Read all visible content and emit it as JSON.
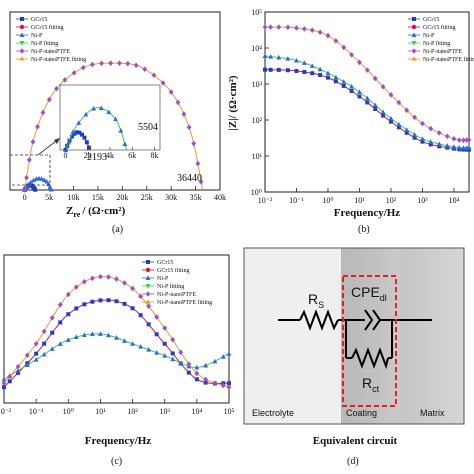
{
  "colors": {
    "GCr15": "#1f3fbf",
    "GCr15 fitting": "#e0123a",
    "Ni-P": "#2f66e8",
    "Ni-P fitting": "#37d04a",
    "Ni-P-nanoPTFE": "#a24fc7",
    "Ni-P-nanoPTFE fitting": "#e0a030"
  },
  "legend_names": [
    "GCr15",
    "GCr15 fitting",
    "Ni-P",
    "Ni-P fitting",
    "Ni-P-nanoPTFE",
    "Ni-P-nanoPTFE fitting"
  ],
  "legend_names_b": [
    "GCr15",
    "GCr15 fitting",
    "Ni-P",
    "Ni-P fitting",
    "Ni-P-nanoPTFE",
    "Ni-P-nanoPTFE fitting"
  ],
  "chart_data": [
    {
      "type": "scatter",
      "panel_label": "(a)",
      "xlabel_main": "Z",
      "xlabel_sub": "re",
      "xlabel_rest": "/ (Ω·cm²)",
      "xlim": [
        -3000,
        40000
      ],
      "ylim": [
        0,
        40000
      ],
      "x_ticks": [
        "0",
        "5k",
        "10k",
        "15k",
        "20k",
        "25k",
        "30k",
        "35k",
        "40k"
      ],
      "x_tick_values": [
        0,
        5000,
        10000,
        15000,
        20000,
        25000,
        30000,
        35000,
        40000
      ],
      "annotations": [
        "36440",
        "5504",
        "2193"
      ],
      "inset": {
        "x_ticks": [
          "0",
          "2k",
          "4k",
          "6k",
          "8k"
        ],
        "x_tick_values": [
          0,
          2000,
          4000,
          6000,
          8000
        ],
        "xlim": [
          -500,
          8500
        ],
        "ylim": [
          0,
          4000
        ]
      },
      "series": [
        {
          "name": "GCr15",
          "points": [
            [
              0,
              0
            ],
            [
              500,
              760
            ],
            [
              1097,
              1097
            ],
            [
              1700,
              760
            ],
            [
              2193,
              0
            ]
          ]
        },
        {
          "name": "Ni-P",
          "points": [
            [
              0,
              0
            ],
            [
              1000,
              1500
            ],
            [
              2752,
              2600
            ],
            [
              4500,
              1900
            ],
            [
              5504,
              0
            ]
          ]
        },
        {
          "name": "Ni-P-nanoPTFE",
          "points": [
            [
              0,
              0
            ],
            [
              2000,
              12000
            ],
            [
              6000,
              22000
            ],
            [
              12000,
              27500
            ],
            [
              18220,
              28500
            ],
            [
              24000,
              27500
            ],
            [
              30000,
              22000
            ],
            [
              34000,
              13000
            ],
            [
              36440,
              0
            ]
          ]
        }
      ]
    },
    {
      "type": "line",
      "panel_label": "(b)",
      "ylabel": "|Z|/ (Ω·cm²)",
      "xlabel": "Frequency/Hz",
      "xlog": true,
      "ylog": true,
      "xlim": [
        0.01,
        30000
      ],
      "ylim": [
        1,
        100000
      ],
      "x_ticks": [
        "10⁻²",
        "10⁻¹",
        "10⁰",
        "10¹",
        "10²",
        "10³",
        "10⁴"
      ],
      "y_ticks": [
        "10⁰",
        "10¹",
        "10²",
        "10³",
        "10⁴",
        "10⁵"
      ],
      "series": [
        {
          "name": "GCr15",
          "x": [
            0.01,
            0.1,
            1,
            10,
            100,
            1000,
            10000,
            30000
          ],
          "y": [
            2500,
            2300,
            1500,
            450,
            90,
            25,
            16,
            15
          ]
        },
        {
          "name": "Ni-P",
          "x": [
            0.01,
            0.1,
            1,
            10,
            100,
            1000,
            10000,
            30000
          ],
          "y": [
            6000,
            4500,
            2000,
            600,
            110,
            30,
            18,
            17
          ]
        },
        {
          "name": "Ni-P-nanoPTFE",
          "x": [
            0.01,
            0.1,
            1,
            10,
            100,
            1000,
            10000,
            30000
          ],
          "y": [
            38000,
            36000,
            22000,
            4000,
            500,
            80,
            30,
            28
          ]
        }
      ]
    },
    {
      "type": "line",
      "panel_label": "(c)",
      "xlabel": "Frequency/Hz",
      "xlog": true,
      "xlim": [
        0.01,
        100000
      ],
      "ylim": [
        0,
        75
      ],
      "x_ticks": [
        "10⁻²",
        "10⁻¹",
        "10⁰",
        "10¹",
        "10²",
        "10³",
        "10⁴",
        "10⁵"
      ],
      "series": [
        {
          "name": "GCr15",
          "x": [
            0.01,
            0.1,
            1,
            10,
            100,
            1000,
            10000,
            100000
          ],
          "y": [
            8,
            25,
            45,
            52,
            48,
            30,
            12,
            10
          ]
        },
        {
          "name": "Ni-P",
          "x": [
            0.01,
            0.1,
            1,
            10,
            100,
            1000,
            10000,
            100000
          ],
          "y": [
            12,
            22,
            32,
            35,
            30,
            24,
            18,
            25
          ]
        },
        {
          "name": "Ni-P-nanoPTFE",
          "x": [
            0.01,
            0.1,
            1,
            10,
            100,
            1000,
            10000,
            100000
          ],
          "y": [
            10,
            30,
            55,
            64,
            58,
            38,
            15,
            8
          ]
        }
      ]
    }
  ],
  "circuit": {
    "rs": "R",
    "rs_sub": "S",
    "cpe": "CPE",
    "cpe_sub": "dl",
    "rct": "R",
    "rct_sub": "ct",
    "regions": [
      "Electrolyte",
      "Coating",
      "Matrix"
    ],
    "title": "Equivalent circuit",
    "panel_label": "(d)"
  }
}
